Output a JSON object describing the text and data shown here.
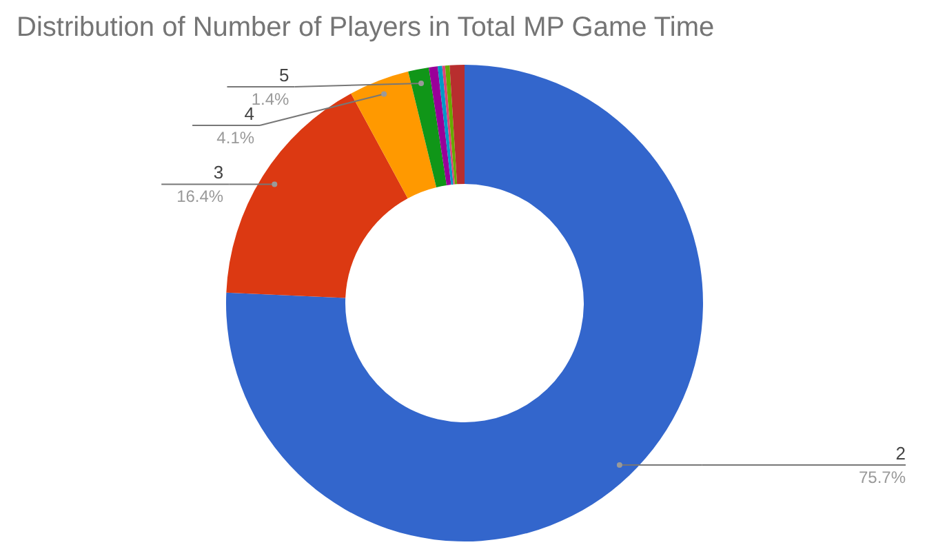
{
  "chart_data": {
    "type": "donut",
    "title": "Distribution of Number of Players in Total MP Game Time",
    "categories": [
      "2",
      "3",
      "4",
      "5",
      null,
      null,
      null,
      null,
      null
    ],
    "values": [
      75.7,
      16.4,
      4.1,
      1.4,
      0.6,
      0.3,
      0.2,
      0.3,
      1.0
    ],
    "colors": [
      "#3366cc",
      "#dc3912",
      "#ff9900",
      "#109618",
      "#990099",
      "#0099c6",
      "#dd4477",
      "#66aa00",
      "#b82e2e"
    ],
    "value_labels": [
      "75.7%",
      "16.4%",
      "4.1%",
      "1.4%",
      null,
      null,
      null,
      null,
      null
    ]
  }
}
